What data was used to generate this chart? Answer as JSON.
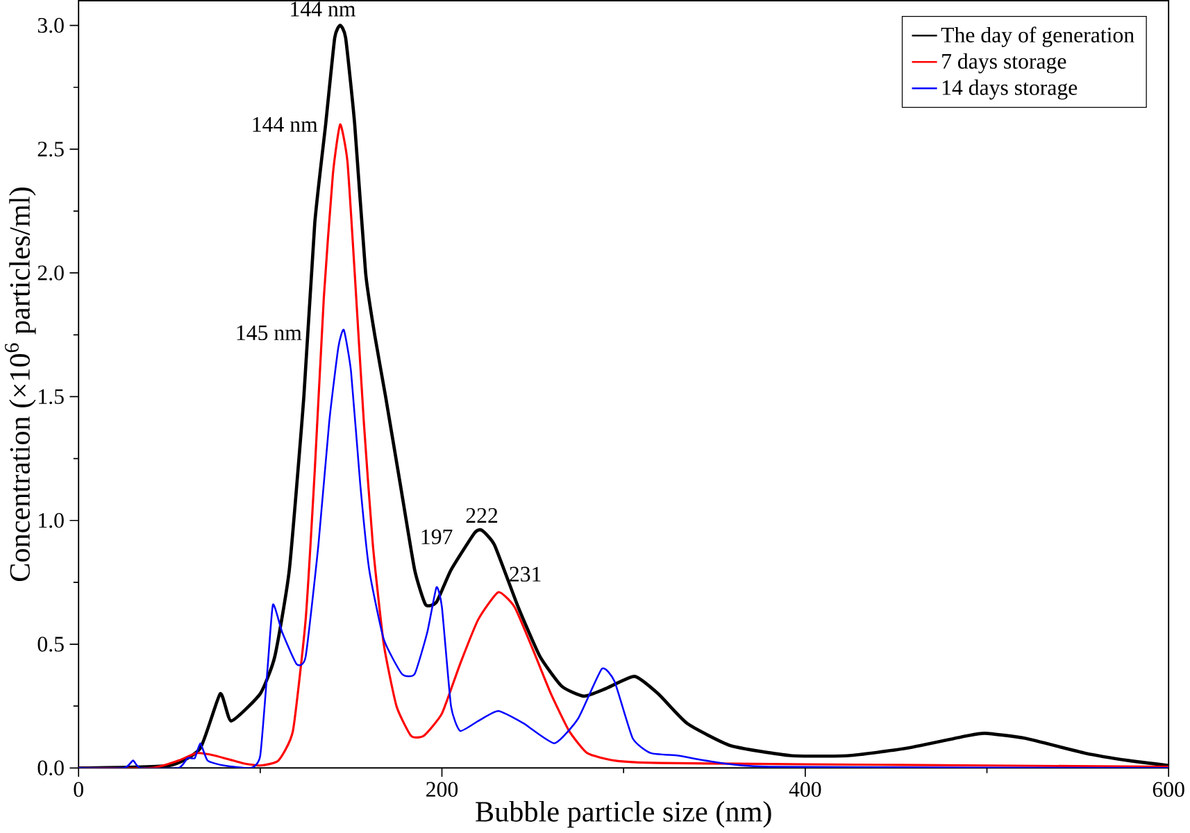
{
  "chart_data": {
    "type": "line",
    "xlabel": "Bubble particle size (nm)",
    "ylabel": "Concentration (×10$^{6}$ particles/ml)",
    "xlim": [
      0,
      600
    ],
    "ylim": [
      0,
      3.1
    ],
    "xticks": [
      0,
      200,
      400,
      600
    ],
    "yticks": [
      {
        "value": 0,
        "label": "0.0"
      },
      {
        "value": 0.5,
        "label": "0.5"
      },
      {
        "value": 1,
        "label": "1.0"
      },
      {
        "value": 1.5,
        "label": "1.5"
      },
      {
        "value": 2,
        "label": "2.0"
      },
      {
        "value": 2.5,
        "label": "2.5"
      },
      {
        "value": 3,
        "label": "3.0"
      }
    ],
    "legend": "top right",
    "grid": false,
    "series": [
      {
        "name": "The day of generation",
        "color": "#000000",
        "x": [
          0,
          50,
          67,
          78,
          84,
          100,
          108,
          116,
          124,
          130,
          136,
          141,
          144,
          147,
          152,
          158,
          163,
          169,
          177,
          185,
          191,
          197,
          205,
          218,
          222,
          229,
          242,
          254,
          266,
          278,
          290,
          306,
          319,
          335,
          359,
          392,
          424,
          456,
          489,
          499,
          521,
          554,
          578,
          600
        ],
        "values": [
          0,
          0.01,
          0.08,
          0.3,
          0.19,
          0.3,
          0.45,
          0.8,
          1.5,
          2.2,
          2.6,
          2.95,
          3.0,
          2.95,
          2.6,
          2.0,
          1.75,
          1.5,
          1.15,
          0.8,
          0.66,
          0.67,
          0.8,
          0.95,
          0.96,
          0.9,
          0.65,
          0.45,
          0.33,
          0.29,
          0.32,
          0.37,
          0.3,
          0.18,
          0.09,
          0.05,
          0.05,
          0.08,
          0.13,
          0.14,
          0.12,
          0.06,
          0.03,
          0.01
        ]
      },
      {
        "name": "7 days storage",
        "color": "#ff0000",
        "x": [
          0,
          40,
          55,
          65,
          75,
          90,
          100,
          110,
          118,
          125,
          130,
          135,
          140,
          144,
          148,
          152,
          157,
          162,
          168,
          175,
          183,
          190,
          200,
          210,
          220,
          231,
          240,
          250,
          260,
          270,
          280,
          295,
          320,
          400,
          500,
          600
        ],
        "values": [
          0,
          0,
          0.03,
          0.06,
          0.05,
          0.02,
          0.01,
          0.03,
          0.15,
          0.6,
          1.2,
          1.9,
          2.4,
          2.6,
          2.45,
          2.0,
          1.4,
          0.9,
          0.5,
          0.25,
          0.13,
          0.13,
          0.22,
          0.42,
          0.6,
          0.71,
          0.65,
          0.48,
          0.3,
          0.15,
          0.06,
          0.03,
          0.02,
          0.015,
          0.01,
          0.005
        ]
      },
      {
        "name": "14 days storage",
        "color": "#0000ff",
        "x": [
          0,
          25,
          30,
          34,
          55,
          60,
          64,
          67,
          71,
          80,
          95,
          100,
          104,
          107,
          112,
          120,
          125,
          132,
          138,
          143,
          146,
          150,
          155,
          160,
          168,
          178,
          185,
          192,
          197,
          200,
          205,
          210,
          220,
          231,
          245,
          262,
          275,
          288,
          295,
          305,
          315,
          330,
          345,
          380,
          600
        ],
        "values": [
          0,
          0,
          0.03,
          0,
          0,
          0.04,
          0.04,
          0.1,
          0.03,
          0.01,
          0,
          0.05,
          0.4,
          0.66,
          0.55,
          0.42,
          0.45,
          0.9,
          1.4,
          1.7,
          1.77,
          1.6,
          1.15,
          0.8,
          0.52,
          0.38,
          0.38,
          0.55,
          0.73,
          0.65,
          0.25,
          0.15,
          0.19,
          0.23,
          0.18,
          0.1,
          0.2,
          0.4,
          0.35,
          0.12,
          0.06,
          0.05,
          0.03,
          0.005,
          0
        ]
      }
    ],
    "annotations": [
      {
        "text": "144 nm",
        "x": 144,
        "y": 3.0
      },
      {
        "text": "144 nm",
        "x": 144,
        "y": 2.6
      },
      {
        "text": "145 nm",
        "x": 145,
        "y": 1.77
      },
      {
        "text": "197",
        "x": 197,
        "y": 0.73
      },
      {
        "text": "222",
        "x": 222,
        "y": 0.96
      },
      {
        "text": "231",
        "x": 231,
        "y": 0.71
      }
    ]
  }
}
